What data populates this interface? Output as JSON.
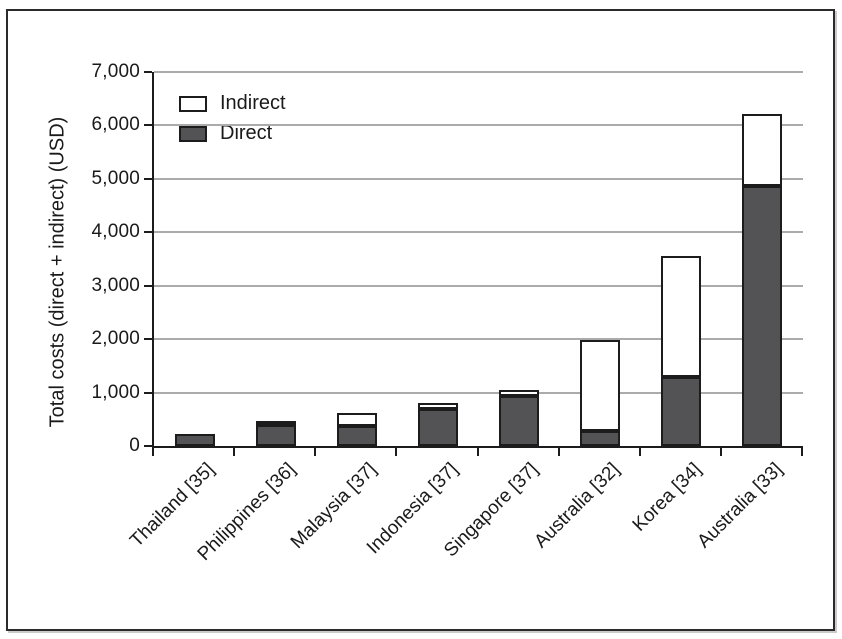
{
  "colors": {
    "background": "#ffffff",
    "frame": "#2b2b2b",
    "axis": "#1c1c1c",
    "gridline": "#ababab",
    "bar_outline": "#1c1c1c",
    "bar_direct_fill": "#535355",
    "bar_indirect_fill": "#ffffff",
    "text": "#1a1a1a"
  },
  "legend": {
    "items": [
      {
        "label": "Indirect",
        "color": "#ffffff"
      },
      {
        "label": "Direct",
        "color": "#535355"
      }
    ]
  },
  "chart_data": {
    "type": "bar",
    "stacked": true,
    "title": "",
    "xlabel": "",
    "ylabel": "Total costs (direct + indirect) (USD)",
    "ylim": [
      0,
      7000
    ],
    "ytick_step": 1000,
    "ytick_labels": [
      "0",
      "1,000",
      "2,000",
      "3,000",
      "4,000",
      "5,000",
      "6,000",
      "7,000"
    ],
    "grid": "horizontal gridlines every 1,000",
    "legend_position": "top-left inside plot",
    "categories": [
      "Thailand [35]",
      "Philippines [36]",
      "Malaysia [37]",
      "Indonesia [37]",
      "Singapore [37]",
      "Australia [32]",
      "Korea [34]",
      "Australia [33]"
    ],
    "series": [
      {
        "name": "Direct",
        "color": "#535355",
        "values": [
          220,
          400,
          370,
          700,
          940,
          280,
          1300,
          4870
        ]
      },
      {
        "name": "Indirect",
        "color": "#ffffff",
        "values": [
          0,
          30,
          240,
          100,
          110,
          1700,
          2250,
          1340
        ]
      }
    ],
    "totals_direct_plus_indirect": [
      220,
      430,
      610,
      800,
      1050,
      1980,
      3550,
      6210
    ]
  }
}
